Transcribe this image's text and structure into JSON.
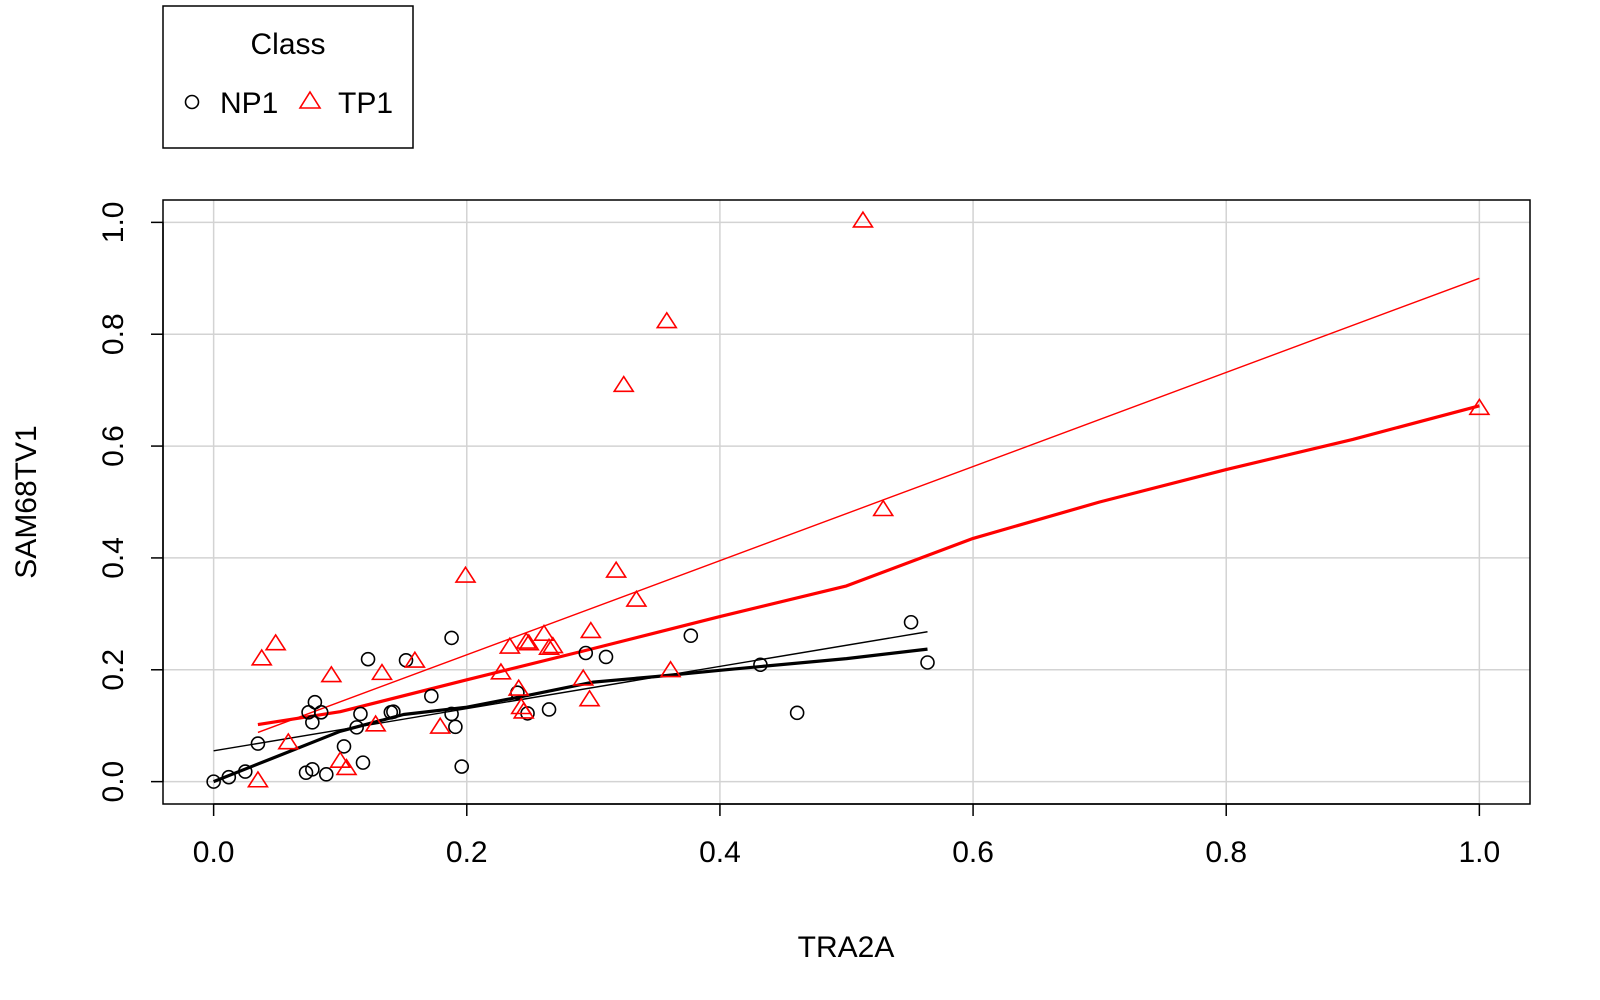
{
  "chart_data": {
    "type": "scatter",
    "title": "",
    "xlabel": "TRA2A",
    "ylabel": "SAM68TV1",
    "xlim": [
      -0.04,
      1.04
    ],
    "ylim": [
      -0.04,
      1.04
    ],
    "x_ticks": [
      0.0,
      0.2,
      0.4,
      0.6,
      0.8,
      1.0
    ],
    "x_tick_labels": [
      "0.0",
      "0.2",
      "0.4",
      "0.6",
      "0.8",
      "1.0"
    ],
    "y_ticks": [
      0.0,
      0.2,
      0.4,
      0.6,
      0.8,
      1.0
    ],
    "y_tick_labels": [
      "0.0",
      "0.2",
      "0.4",
      "0.6",
      "0.8",
      "1.0"
    ],
    "grid": true,
    "legend": {
      "title": "Class",
      "placement": "top-left, outside plot",
      "entries": [
        {
          "label": "NP1",
          "marker": "circle",
          "color": "#000000"
        },
        {
          "label": "TP1",
          "marker": "triangle",
          "color": "#ff0000"
        }
      ]
    },
    "series": [
      {
        "name": "NP1",
        "marker": "circle",
        "color": "#000000",
        "points": [
          [
            0.0,
            0.0
          ],
          [
            0.012,
            0.008
          ],
          [
            0.025,
            0.018
          ],
          [
            0.035,
            0.068
          ],
          [
            0.073,
            0.016
          ],
          [
            0.075,
            0.124
          ],
          [
            0.078,
            0.022
          ],
          [
            0.078,
            0.106
          ],
          [
            0.08,
            0.142
          ],
          [
            0.085,
            0.124
          ],
          [
            0.089,
            0.013
          ],
          [
            0.103,
            0.063
          ],
          [
            0.113,
            0.097
          ],
          [
            0.116,
            0.121
          ],
          [
            0.118,
            0.034
          ],
          [
            0.122,
            0.219
          ],
          [
            0.14,
            0.124
          ],
          [
            0.142,
            0.125
          ],
          [
            0.152,
            0.217
          ],
          [
            0.172,
            0.153
          ],
          [
            0.188,
            0.257
          ],
          [
            0.188,
            0.121
          ],
          [
            0.191,
            0.098
          ],
          [
            0.196,
            0.027
          ],
          [
            0.24,
            0.159
          ],
          [
            0.248,
            0.122
          ],
          [
            0.265,
            0.129
          ],
          [
            0.294,
            0.23
          ],
          [
            0.31,
            0.223
          ],
          [
            0.377,
            0.261
          ],
          [
            0.432,
            0.209
          ],
          [
            0.461,
            0.123
          ],
          [
            0.551,
            0.285
          ],
          [
            0.564,
            0.213
          ]
        ],
        "linear_fit": [
          [
            0.0,
            0.055
          ],
          [
            0.564,
            0.268
          ]
        ],
        "smooth_fit": [
          [
            0.0,
            0.0
          ],
          [
            0.05,
            0.045
          ],
          [
            0.1,
            0.09
          ],
          [
            0.15,
            0.12
          ],
          [
            0.2,
            0.133
          ],
          [
            0.25,
            0.155
          ],
          [
            0.3,
            0.178
          ],
          [
            0.35,
            0.188
          ],
          [
            0.4,
            0.199
          ],
          [
            0.5,
            0.22
          ],
          [
            0.564,
            0.237
          ]
        ]
      },
      {
        "name": "TP1",
        "marker": "triangle",
        "color": "#ff0000",
        "points": [
          [
            0.035,
            0.003
          ],
          [
            0.038,
            0.221
          ],
          [
            0.049,
            0.248
          ],
          [
            0.059,
            0.071
          ],
          [
            0.093,
            0.191
          ],
          [
            0.1,
            0.038
          ],
          [
            0.105,
            0.025
          ],
          [
            0.128,
            0.103
          ],
          [
            0.133,
            0.195
          ],
          [
            0.159,
            0.217
          ],
          [
            0.179,
            0.099
          ],
          [
            0.199,
            0.369
          ],
          [
            0.227,
            0.196
          ],
          [
            0.234,
            0.242
          ],
          [
            0.241,
            0.167
          ],
          [
            0.243,
            0.134
          ],
          [
            0.245,
            0.126
          ],
          [
            0.247,
            0.251
          ],
          [
            0.249,
            0.248
          ],
          [
            0.261,
            0.265
          ],
          [
            0.265,
            0.24
          ],
          [
            0.268,
            0.243
          ],
          [
            0.292,
            0.185
          ],
          [
            0.297,
            0.148
          ],
          [
            0.298,
            0.27
          ],
          [
            0.318,
            0.378
          ],
          [
            0.324,
            0.71
          ],
          [
            0.334,
            0.326
          ],
          [
            0.358,
            0.824
          ],
          [
            0.361,
            0.2
          ],
          [
            0.513,
            1.004
          ],
          [
            0.529,
            0.488
          ],
          [
            1.0,
            0.669
          ]
        ],
        "linear_fit": [
          [
            0.035,
            0.088
          ],
          [
            1.0,
            0.9
          ]
        ],
        "smooth_fit": [
          [
            0.035,
            0.102
          ],
          [
            0.1,
            0.125
          ],
          [
            0.2,
            0.182
          ],
          [
            0.3,
            0.238
          ],
          [
            0.4,
            0.295
          ],
          [
            0.5,
            0.35
          ],
          [
            0.6,
            0.435
          ],
          [
            0.7,
            0.5
          ],
          [
            0.8,
            0.558
          ],
          [
            0.9,
            0.612
          ],
          [
            1.0,
            0.672
          ]
        ]
      }
    ]
  }
}
